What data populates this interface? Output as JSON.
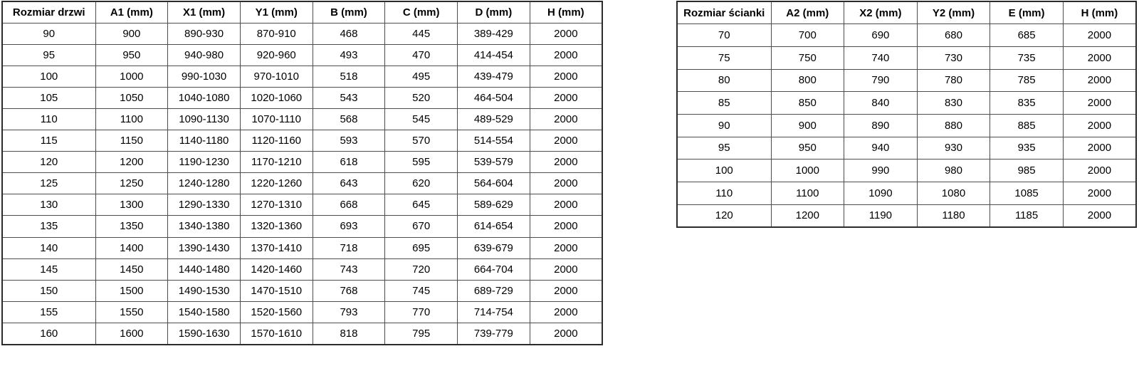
{
  "page": {
    "background_color": "#ffffff",
    "border_color": "#4d4d4d",
    "outer_border_color": "#2b2b2b",
    "text_color": "#000000"
  },
  "tables": [
    {
      "name": "door-size-table",
      "headers": [
        "Rozmiar drzwi",
        "A1 (mm)",
        "X1 (mm)",
        "Y1 (mm)",
        "B (mm)",
        "C (mm)",
        "D (mm)",
        "H (mm)"
      ],
      "rows": [
        [
          "90",
          "900",
          "890-930",
          "870-910",
          "468",
          "445",
          "389-429",
          "2000"
        ],
        [
          "95",
          "950",
          "940-980",
          "920-960",
          "493",
          "470",
          "414-454",
          "2000"
        ],
        [
          "100",
          "1000",
          "990-1030",
          "970-1010",
          "518",
          "495",
          "439-479",
          "2000"
        ],
        [
          "105",
          "1050",
          "1040-1080",
          "1020-1060",
          "543",
          "520",
          "464-504",
          "2000"
        ],
        [
          "110",
          "1100",
          "1090-1130",
          "1070-1110",
          "568",
          "545",
          "489-529",
          "2000"
        ],
        [
          "115",
          "1150",
          "1140-1180",
          "1120-1160",
          "593",
          "570",
          "514-554",
          "2000"
        ],
        [
          "120",
          "1200",
          "1190-1230",
          "1170-1210",
          "618",
          "595",
          "539-579",
          "2000"
        ],
        [
          "125",
          "1250",
          "1240-1280",
          "1220-1260",
          "643",
          "620",
          "564-604",
          "2000"
        ],
        [
          "130",
          "1300",
          "1290-1330",
          "1270-1310",
          "668",
          "645",
          "589-629",
          "2000"
        ],
        [
          "135",
          "1350",
          "1340-1380",
          "1320-1360",
          "693",
          "670",
          "614-654",
          "2000"
        ],
        [
          "140",
          "1400",
          "1390-1430",
          "1370-1410",
          "718",
          "695",
          "639-679",
          "2000"
        ],
        [
          "145",
          "1450",
          "1440-1480",
          "1420-1460",
          "743",
          "720",
          "664-704",
          "2000"
        ],
        [
          "150",
          "1500",
          "1490-1530",
          "1470-1510",
          "768",
          "745",
          "689-729",
          "2000"
        ],
        [
          "155",
          "1550",
          "1540-1580",
          "1520-1560",
          "793",
          "770",
          "714-754",
          "2000"
        ],
        [
          "160",
          "1600",
          "1590-1630",
          "1570-1610",
          "818",
          "795",
          "739-779",
          "2000"
        ]
      ]
    },
    {
      "name": "wall-size-table",
      "headers": [
        "Rozmiar ścianki",
        "A2 (mm)",
        "X2 (mm)",
        "Y2 (mm)",
        "E (mm)",
        "H (mm)"
      ],
      "rows": [
        [
          "70",
          "700",
          "690",
          "680",
          "685",
          "2000"
        ],
        [
          "75",
          "750",
          "740",
          "730",
          "735",
          "2000"
        ],
        [
          "80",
          "800",
          "790",
          "780",
          "785",
          "2000"
        ],
        [
          "85",
          "850",
          "840",
          "830",
          "835",
          "2000"
        ],
        [
          "90",
          "900",
          "890",
          "880",
          "885",
          "2000"
        ],
        [
          "95",
          "950",
          "940",
          "930",
          "935",
          "2000"
        ],
        [
          "100",
          "1000",
          "990",
          "980",
          "985",
          "2000"
        ],
        [
          "110",
          "1100",
          "1090",
          "1080",
          "1085",
          "2000"
        ],
        [
          "120",
          "1200",
          "1190",
          "1180",
          "1185",
          "2000"
        ]
      ]
    }
  ]
}
